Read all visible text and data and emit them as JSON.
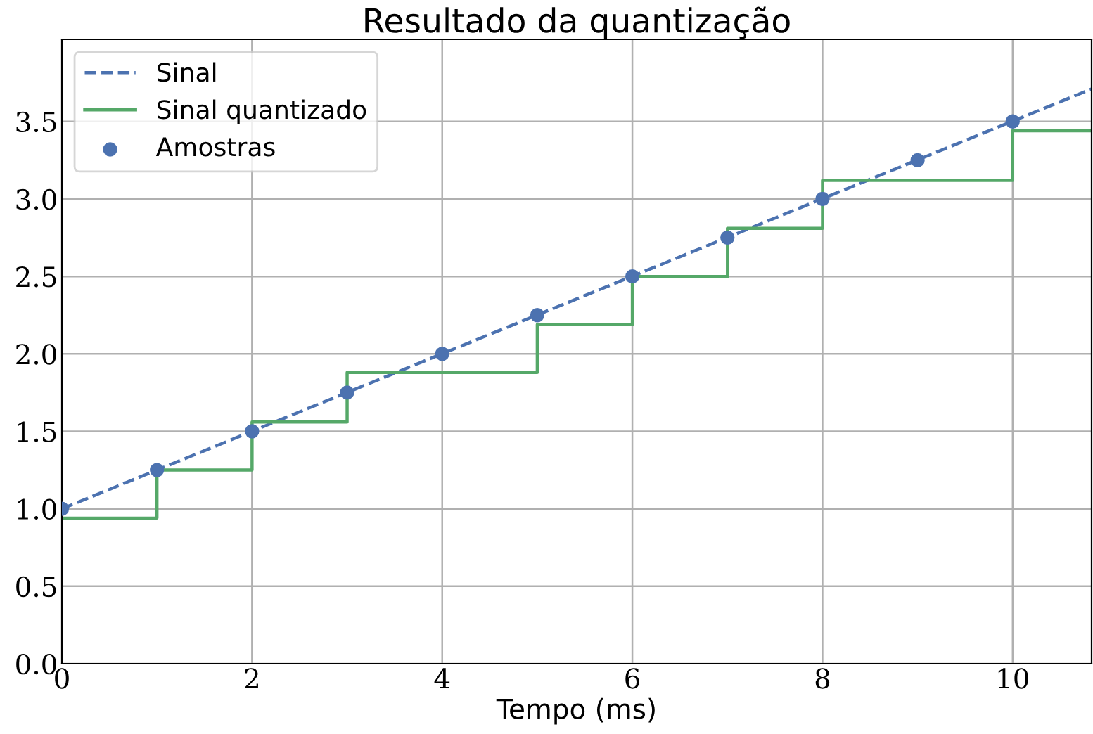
{
  "chart_data": {
    "type": "line",
    "title": "Resultado da quantização",
    "xlabel": "Tempo (ms)",
    "xlim": [
      0,
      10.83
    ],
    "ylim": [
      0,
      4.03
    ],
    "xticks": [
      0,
      2,
      4,
      6,
      8,
      10
    ],
    "yticks": [
      {
        "value": 0,
        "label": "0.0"
      },
      0.5,
      {
        "value": 1,
        "label": "1.0"
      },
      1.5,
      {
        "value": 2,
        "label": "2.0"
      },
      2.5,
      {
        "value": 3,
        "label": "3.0"
      },
      3.5
    ],
    "grid": true,
    "legend": "top left",
    "series": [
      {
        "name": "Sinal",
        "line_style": "dashed",
        "color": "#4c72b0",
        "x": [
          0,
          10.83
        ],
        "values": [
          1.0,
          3.71
        ]
      },
      {
        "name": "Sinal quantizado",
        "type": "step",
        "color": "#55a868",
        "x": [
          0,
          1,
          2,
          3,
          4,
          5,
          6,
          7,
          8,
          9,
          10,
          10.83
        ],
        "values": [
          0.94,
          1.25,
          1.56,
          1.88,
          1.88,
          2.19,
          2.5,
          2.81,
          3.12,
          3.12,
          3.44,
          3.44
        ]
      },
      {
        "name": "Amostras",
        "type": "scatter",
        "marker": "circle",
        "color": "#4c72b0",
        "x": [
          0,
          1,
          2,
          3,
          4,
          5,
          6,
          7,
          8,
          9,
          10
        ],
        "values": [
          1.0,
          1.25,
          1.5,
          1.75,
          2.0,
          2.25,
          2.5,
          2.75,
          3.0,
          3.25,
          3.5
        ]
      }
    ]
  }
}
